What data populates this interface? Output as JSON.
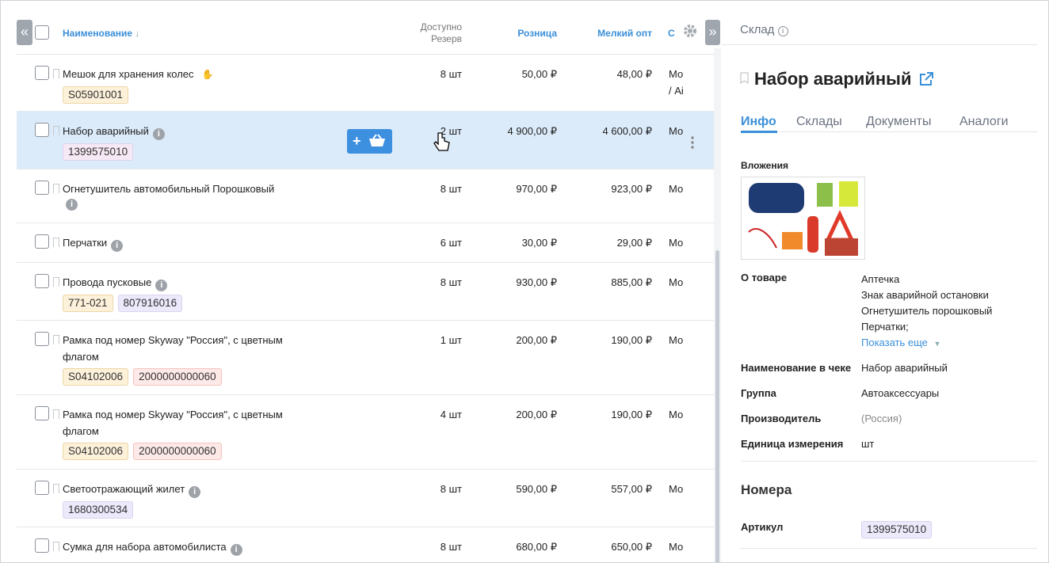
{
  "table": {
    "headers": {
      "name": "Наименование",
      "available": "Доступно",
      "reserve": "Резерв",
      "retail": "Розница",
      "small_wholesale": "Мелкий опт",
      "extra": "С"
    },
    "rows": [
      {
        "name": "Мешок для хранения колес",
        "tags": [
          {
            "text": "S05901001",
            "color": "#fdf1da"
          }
        ],
        "available": "8 шт",
        "retail": "50,00 ₽",
        "small_wholesale": "48,00 ₽",
        "extra": "Мо / Аі"
      },
      {
        "name": "Набор аварийный",
        "info": true,
        "tags": [
          {
            "text": "1399575010",
            "color": "#f6e8f4"
          }
        ],
        "available": "2 шт",
        "retail": "4 900,00 ₽",
        "small_wholesale": "4 600,00 ₽",
        "extra": "Мо"
      },
      {
        "name": "Огнетушитель автомобильный Порошковый",
        "info": true,
        "tags": [],
        "available": "8 шт",
        "retail": "970,00 ₽",
        "small_wholesale": "923,00 ₽",
        "extra": "Мо"
      },
      {
        "name": "Перчатки",
        "info": true,
        "tags": [],
        "available": "6 шт",
        "retail": "30,00 ₽",
        "small_wholesale": "29,00 ₽",
        "extra": "Мо"
      },
      {
        "name": "Провода пусковые",
        "info": true,
        "tags": [
          {
            "text": "771-021",
            "color": "#fdf1da"
          },
          {
            "text": "807916016",
            "color": "#ece9fb"
          }
        ],
        "available": "8 шт",
        "retail": "930,00 ₽",
        "small_wholesale": "885,00 ₽",
        "extra": "Мо"
      },
      {
        "name": "Рамка под номер Skyway \"Россия\", с цветным флагом",
        "tags": [
          {
            "text": "S04102006",
            "color": "#fdf1da"
          },
          {
            "text": "2000000000060",
            "color": "#fde9e7"
          }
        ],
        "available": "1 шт",
        "retail": "200,00 ₽",
        "small_wholesale": "190,00 ₽",
        "extra": "Мо"
      },
      {
        "name": "Рамка под номер Skyway \"Россия\", с цветным флагом",
        "tags": [
          {
            "text": "S04102006",
            "color": "#fdf1da"
          },
          {
            "text": "2000000000060",
            "color": "#fde9e7"
          }
        ],
        "available": "4 шт",
        "retail": "200,00 ₽",
        "small_wholesale": "190,00 ₽",
        "extra": "Мо"
      },
      {
        "name": "Светоотражающий жилет",
        "info": true,
        "tags": [
          {
            "text": "1680300534",
            "color": "#ece9fb"
          }
        ],
        "available": "8 шт",
        "retail": "590,00 ₽",
        "small_wholesale": "557,00 ₽",
        "extra": "Мо"
      },
      {
        "name": "Сумка для набора автомобилиста",
        "info": true,
        "tags": [],
        "available": "8 шт",
        "retail": "680,00 ₽",
        "small_wholesale": "650,00 ₽",
        "extra": "Мо"
      }
    ]
  },
  "panel": {
    "header": "Склад",
    "title": "Набор аварийный",
    "tabs": [
      "Инфо",
      "Склады",
      "Документы",
      "Аналоги"
    ],
    "attachments": "Вложения",
    "about": {
      "label": "О товаре",
      "lines": [
        "Аптечка",
        "Знак аварийной остановки",
        "Огнетушитель порошковый",
        "Перчатки;"
      ],
      "more": "Показать еще"
    },
    "fields": [
      {
        "label": "Наименование в чеке",
        "value": "Набор аварийный"
      },
      {
        "label": "Группа",
        "value": "Автоаксессуары"
      },
      {
        "label": "Производитель",
        "value": "(Россия)"
      },
      {
        "label": "Единица измерения",
        "value": "шт"
      }
    ],
    "numbers": {
      "title": "Номера",
      "label": "Артикул",
      "value": "1399575010"
    }
  }
}
